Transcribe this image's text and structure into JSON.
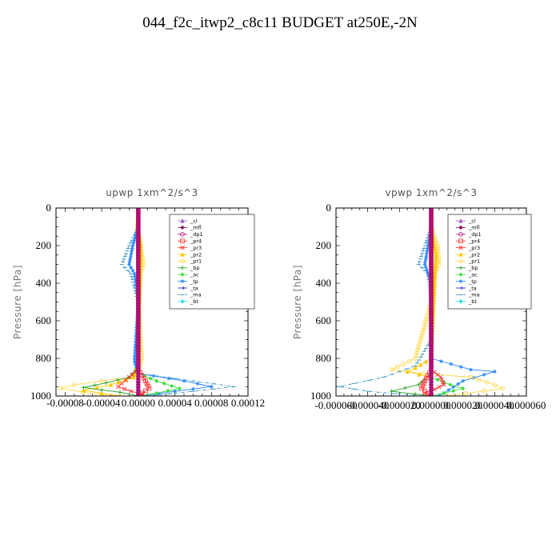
{
  "title": "044_f2c_itwp2_c8c11  BUDGET at250E,-2N",
  "legend_entries": [
    {
      "name": "_cl",
      "color": "#a060c0",
      "marker": "triangle"
    },
    {
      "name": "_mfl",
      "color": "#8a0a5a",
      "marker": "diamond"
    },
    {
      "name": "_dp1",
      "color": "#b01080",
      "marker": "circle"
    },
    {
      "name": "_pr4",
      "color": "#ff3030",
      "marker": "square"
    },
    {
      "name": "_pr3",
      "color": "#ff3030",
      "marker": "x"
    },
    {
      "name": "_pr2",
      "color": "#ffc800",
      "marker": "triangle"
    },
    {
      "name": "_pr1",
      "color": "#ffd84a",
      "marker": "circle"
    },
    {
      "name": "_bp",
      "color": "#20a020",
      "marker": "plus"
    },
    {
      "name": "_ac",
      "color": "#40e040",
      "marker": "diamond"
    },
    {
      "name": "_tp",
      "color": "#2080ff",
      "marker": "star"
    },
    {
      "name": "_ta",
      "color": "#2020c0",
      "marker": "arrow"
    },
    {
      "name": "_ma",
      "color": "#3090c0",
      "marker": "dash"
    },
    {
      "name": "_bt",
      "color": "#20e0e0",
      "marker": "diamond"
    }
  ],
  "chart_data": [
    {
      "type": "line",
      "title": "upwp  1xm^2/s^3",
      "ylabel": "Pressure [hPa]",
      "xlim": [
        -9e-05,
        0.00012
      ],
      "ylim": [
        1000,
        0
      ],
      "xticks": [
        "-0.00008",
        "-0.00004",
        "0.00000",
        "0.00004",
        "0.00008",
        "0.00012"
      ],
      "xtick_values": [
        -8e-05,
        -4e-05,
        0,
        4e-05,
        8e-05,
        0.00012
      ],
      "yticks": [
        "0",
        "200",
        "400",
        "600",
        "800",
        "1000"
      ],
      "ytick_values": [
        0,
        200,
        400,
        600,
        800,
        1000
      ],
      "legend": "top-right",
      "series": [
        {
          "name": "_pr1",
          "x": [
            0.0,
            -2e-06,
            4e-06,
            6e-06,
            2e-06,
            0.0,
            4e-06,
            0.0,
            -6e-06,
            -4e-05,
            -7e-05,
            -8.5e-05,
            -6e-05,
            -3e-05
          ],
          "y": [
            50,
            150,
            250,
            300,
            350,
            500,
            800,
            880,
            900,
            920,
            940,
            960,
            980,
            1000
          ]
        },
        {
          "name": "_pr2",
          "x": [
            0.0,
            3e-06,
            0.0,
            -5e-06,
            -3e-05,
            -6e-05,
            -2e-05
          ],
          "y": [
            100,
            200,
            800,
            900,
            940,
            970,
            1000
          ]
        },
        {
          "name": "_ma",
          "x": [
            0.0,
            -1e-05,
            -1.8e-05,
            -8e-06,
            0.0,
            -4e-06,
            0.0,
            6e-05,
            0.000105,
            6e-05,
            1e-05
          ],
          "y": [
            100,
            200,
            300,
            350,
            500,
            800,
            880,
            920,
            950,
            975,
            1000
          ]
        },
        {
          "name": "_tp",
          "x": [
            0.0,
            -6e-06,
            -1e-05,
            -4e-06,
            0.0,
            -4e-06,
            0.0,
            5e-05,
            8e-05,
            4e-05,
            5e-06
          ],
          "y": [
            100,
            200,
            300,
            350,
            500,
            820,
            880,
            920,
            950,
            975,
            1000
          ]
        },
        {
          "name": "_bp",
          "x": [
            0.0,
            0.0,
            -1e-05,
            -3.5e-05,
            -6e-05,
            -2e-05,
            0.0
          ],
          "y": [
            0,
            850,
            900,
            930,
            955,
            980,
            1000
          ]
        },
        {
          "name": "_ac",
          "x": [
            0.0,
            0.0,
            2e-05,
            4.5e-05,
            2e-05,
            0.0
          ],
          "y": [
            0,
            880,
            920,
            960,
            985,
            1000
          ]
        },
        {
          "name": "_pr3",
          "x": [
            0.0,
            0.0,
            -1e-05,
            -2.2e-05,
            -8e-06,
            5e-06,
            0.0
          ],
          "y": [
            0,
            860,
            900,
            950,
            975,
            990,
            1000
          ]
        },
        {
          "name": "_pr4",
          "x": [
            0.0,
            0.0,
            8e-06,
            1.2e-05,
            4e-06,
            0.0
          ],
          "y": [
            0,
            860,
            920,
            960,
            985,
            1000
          ]
        },
        {
          "name": "_mfl",
          "x": [
            0.0,
            0.0
          ],
          "y": [
            0,
            1000
          ]
        },
        {
          "name": "_dp1",
          "x": [
            0.0,
            0.0
          ],
          "y": [
            0,
            1000
          ]
        }
      ]
    },
    {
      "type": "line",
      "title": "vpwp  1xm^2/s^3",
      "ylabel": "Pressure [hPa]",
      "xlim": [
        -6e-05,
        6e-05
      ],
      "ylim": [
        1000,
        0
      ],
      "xticks": [
        "-0.000060",
        "-0.000040",
        "-0.000020",
        "0.000000",
        "0.000020",
        "0.000040",
        "0.000060"
      ],
      "xtick_values": [
        -6e-05,
        -4e-05,
        -2e-05,
        0,
        2e-05,
        4e-05,
        6e-05
      ],
      "yticks": [
        "0",
        "200",
        "400",
        "600",
        "800",
        "1000"
      ],
      "ytick_values": [
        0,
        200,
        400,
        600,
        800,
        1000
      ],
      "legend": "top-right",
      "series": [
        {
          "name": "_ma",
          "x": [
            0.0,
            -4e-06,
            -8e-06,
            -2e-06,
            0.0,
            0.0,
            -1e-05,
            -3e-05,
            -5.8e-05,
            -4e-05,
            -5e-06
          ],
          "y": [
            100,
            200,
            300,
            350,
            500,
            700,
            840,
            900,
            950,
            975,
            1000
          ]
        },
        {
          "name": "_tp",
          "x": [
            0.0,
            -2e-06,
            -4e-06,
            0.0,
            0.0,
            2.5e-05,
            4e-05,
            2e-05,
            5e-06
          ],
          "y": [
            100,
            200,
            300,
            400,
            800,
            860,
            870,
            920,
            1000
          ]
        },
        {
          "name": "_pr1",
          "x": [
            0.0,
            4e-06,
            5e-06,
            2e-06,
            0.0,
            -1e-05,
            -2.5e-05,
            -5e-06,
            2.5e-05,
            4e-05,
            4.5e-05,
            1e-05
          ],
          "y": [
            100,
            200,
            300,
            350,
            500,
            800,
            860,
            880,
            900,
            940,
            960,
            1000
          ]
        },
        {
          "name": "_pr2",
          "x": [
            0.0,
            3e-06,
            0.0,
            -1e-05,
            -1.5e-05,
            0.0
          ],
          "y": [
            100,
            250,
            800,
            850,
            870,
            900
          ]
        },
        {
          "name": "_bp",
          "x": [
            0.0,
            0.0,
            -8e-06,
            -2.5e-05,
            -1e-05,
            0.0
          ],
          "y": [
            0,
            880,
            940,
            975,
            990,
            1000
          ]
        },
        {
          "name": "_ac",
          "x": [
            0.0,
            0.0,
            1.2e-05,
            2e-05,
            8e-06,
            0.0
          ],
          "y": [
            0,
            900,
            940,
            960,
            985,
            1000
          ]
        },
        {
          "name": "_pr3",
          "x": [
            0.0,
            0.0,
            6e-06,
            8e-06,
            2e-06,
            -4e-06,
            0.0
          ],
          "y": [
            0,
            860,
            900,
            940,
            965,
            985,
            1000
          ]
        },
        {
          "name": "_pr4",
          "x": [
            0.0,
            0.0,
            -4e-06,
            -6e-06,
            0.0
          ],
          "y": [
            0,
            860,
            920,
            960,
            1000
          ]
        },
        {
          "name": "_mfl",
          "x": [
            0.0,
            0.0
          ],
          "y": [
            0,
            1000
          ]
        },
        {
          "name": "_dp1",
          "x": [
            0.0,
            0.0
          ],
          "y": [
            0,
            1000
          ]
        }
      ]
    }
  ]
}
